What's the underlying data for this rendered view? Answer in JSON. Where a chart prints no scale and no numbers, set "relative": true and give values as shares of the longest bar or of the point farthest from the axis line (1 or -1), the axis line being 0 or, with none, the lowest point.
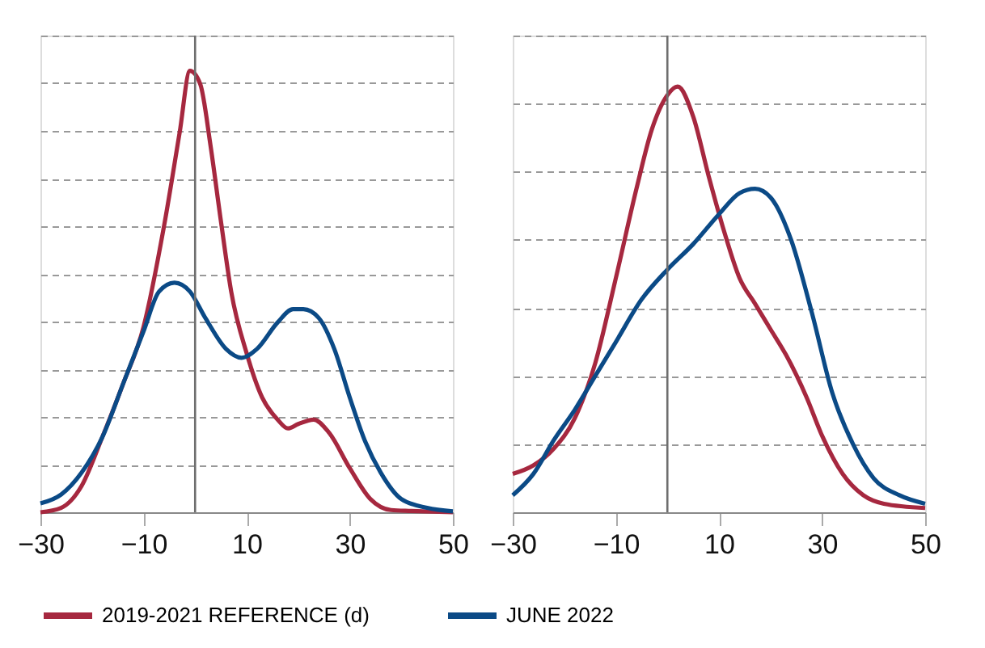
{
  "chart_data": [
    {
      "type": "line",
      "relative": true,
      "xlim": [
        -30,
        50
      ],
      "xticks": [
        -30,
        -10,
        10,
        30,
        50
      ],
      "grid": "y",
      "legend": "bottom",
      "line_style": "solid",
      "marker": "none",
      "ref_lines": [
        {
          "axis": "x",
          "value": 0,
          "color": "#6e6e6e"
        }
      ],
      "series": [
        {
          "name": "2019-2021 REFERENCE (d)",
          "color": "#a6283f",
          "x": [
            -30,
            -26,
            -22,
            -18,
            -14,
            -10,
            -6,
            -3,
            -1,
            1,
            3,
            5,
            7,
            10,
            13,
            16,
            18,
            20,
            23,
            26,
            30,
            34,
            38,
            42,
            50
          ],
          "values": [
            0,
            0.01,
            0.06,
            0.17,
            0.29,
            0.42,
            0.65,
            0.86,
            1,
            0.97,
            0.83,
            0.66,
            0.5,
            0.36,
            0.26,
            0.21,
            0.19,
            0.2,
            0.21,
            0.18,
            0.1,
            0.03,
            0.005,
            0.003,
            0
          ]
        },
        {
          "name": "JUNE 2022",
          "color": "#0b4a86",
          "x": [
            -30,
            -26,
            -22,
            -18,
            -14,
            -10,
            -7,
            -4,
            -1,
            2,
            6,
            9,
            12,
            16,
            19,
            21,
            24,
            27,
            30,
            33,
            36,
            40,
            45,
            50
          ],
          "values": [
            0.02,
            0.04,
            0.09,
            0.17,
            0.29,
            0.41,
            0.5,
            0.52,
            0.5,
            0.44,
            0.37,
            0.35,
            0.37,
            0.43,
            0.46,
            0.46,
            0.44,
            0.37,
            0.26,
            0.16,
            0.09,
            0.03,
            0.01,
            0.002
          ]
        }
      ]
    },
    {
      "type": "line",
      "relative": true,
      "xlim": [
        -30,
        50
      ],
      "xticks": [
        -30,
        -10,
        10,
        30,
        50
      ],
      "grid": "y",
      "legend": "bottom",
      "line_style": "solid",
      "marker": "none",
      "ref_lines": [
        {
          "axis": "x",
          "value": 0,
          "color": "#6e6e6e"
        }
      ],
      "series": [
        {
          "name": "2019-2021 REFERENCE (d)",
          "color": "#a6283f",
          "x": [
            -30,
            -26,
            -22,
            -18,
            -14,
            -10,
            -6,
            -3,
            0,
            2,
            5,
            8,
            11,
            14,
            17,
            20,
            23,
            27,
            30,
            34,
            38,
            42,
            50
          ],
          "values": [
            0.09,
            0.11,
            0.15,
            0.22,
            0.35,
            0.55,
            0.76,
            0.9,
            0.98,
            1,
            0.93,
            0.79,
            0.66,
            0.55,
            0.49,
            0.43,
            0.37,
            0.27,
            0.18,
            0.09,
            0.04,
            0.02,
            0.01
          ]
        },
        {
          "name": "JUNE 2022",
          "color": "#0b4a86",
          "x": [
            -30,
            -26,
            -22,
            -18,
            -14,
            -10,
            -5,
            0,
            5,
            10,
            14,
            17,
            20,
            24,
            28,
            32,
            36,
            40,
            45,
            50
          ],
          "values": [
            0.04,
            0.09,
            0.17,
            0.24,
            0.32,
            0.4,
            0.5,
            0.57,
            0.63,
            0.7,
            0.75,
            0.76,
            0.74,
            0.64,
            0.47,
            0.28,
            0.16,
            0.08,
            0.04,
            0.02
          ]
        }
      ]
    }
  ]
}
